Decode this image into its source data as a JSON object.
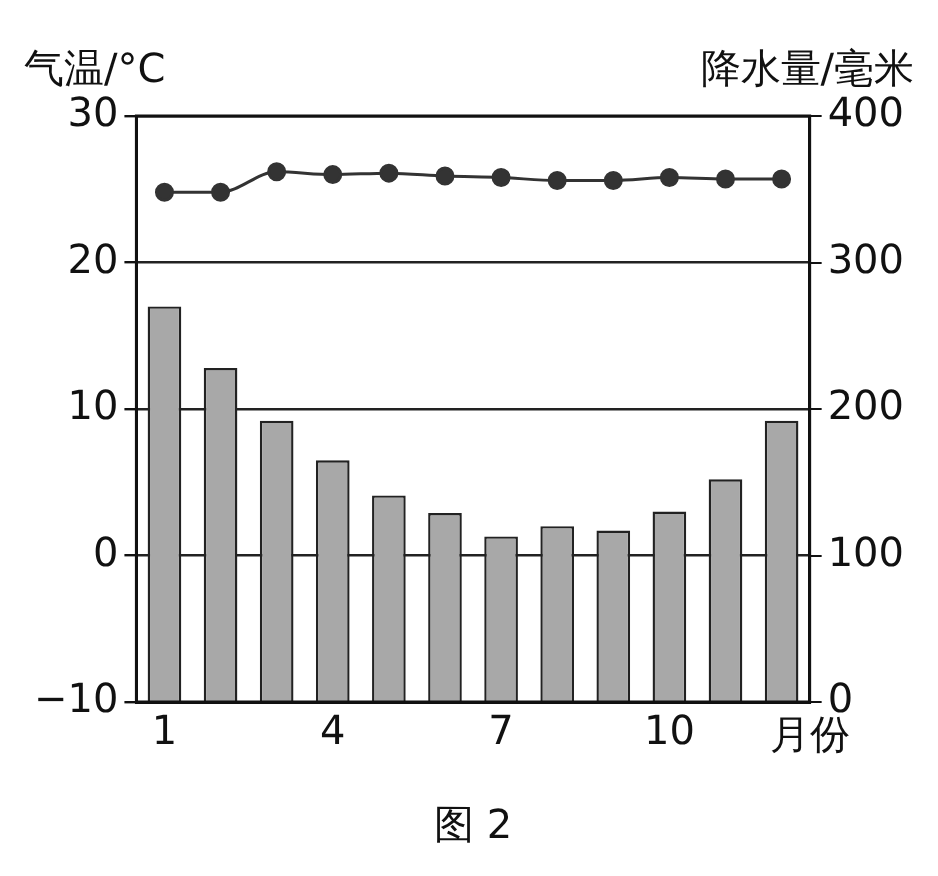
{
  "chart_data": {
    "type": "bar",
    "categories": [
      "1",
      null,
      null,
      "4",
      null,
      null,
      "7",
      null,
      null,
      "10",
      null,
      null
    ],
    "xlabel": "月份",
    "ylabel": "气温/°C",
    "y2label": "降水量/毫米",
    "series": [
      {
        "type": "line",
        "axis": "y",
        "color": "#333333",
        "values": [
          24.8,
          24.8,
          26.2,
          26.0,
          26.1,
          25.9,
          25.8,
          25.6,
          25.6,
          25.8,
          25.7,
          25.7
        ]
      },
      {
        "axis": "y2",
        "color": "#a8a8a8",
        "values": [
          270,
          228,
          192,
          165,
          141,
          129,
          113,
          120,
          117,
          130,
          152,
          192
        ]
      }
    ],
    "ylim": [
      -10,
      30
    ],
    "yticks": [
      -10,
      0,
      10,
      20,
      30
    ],
    "y2lim": [
      0,
      400
    ],
    "y2ticks": [
      0,
      100,
      200,
      300,
      400
    ],
    "grid": "y",
    "marker": "circle",
    "line_style": "solid",
    "annotations": [
      "图 2"
    ]
  }
}
